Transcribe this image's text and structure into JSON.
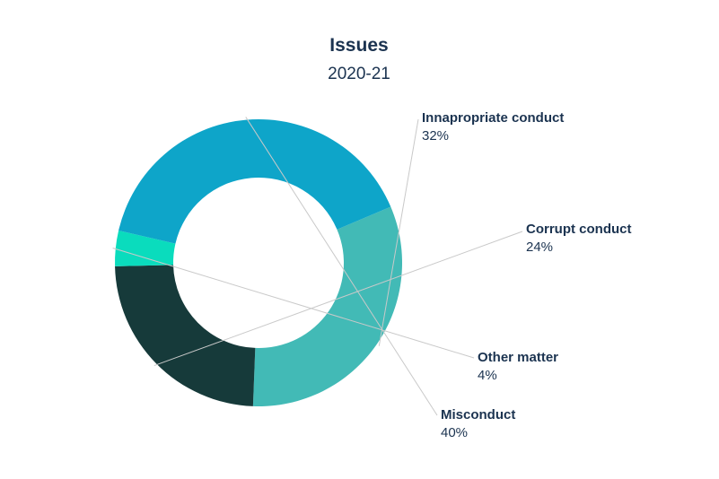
{
  "chart_data": {
    "type": "pie",
    "title": "Issues",
    "subtitle": "2020-21",
    "slices": [
      {
        "label": "Innapropriate conduct",
        "value": 32,
        "value_label": "32%",
        "color": "#42bab6"
      },
      {
        "label": "Corrupt conduct",
        "value": 24,
        "value_label": "24%",
        "color": "#163a3a"
      },
      {
        "label": "Other matter",
        "value": 4,
        "value_label": "4%",
        "color": "#0adcbd"
      },
      {
        "label": "Misconduct",
        "value": 40,
        "value_label": "40%",
        "color": "#0ea5c9"
      }
    ]
  }
}
